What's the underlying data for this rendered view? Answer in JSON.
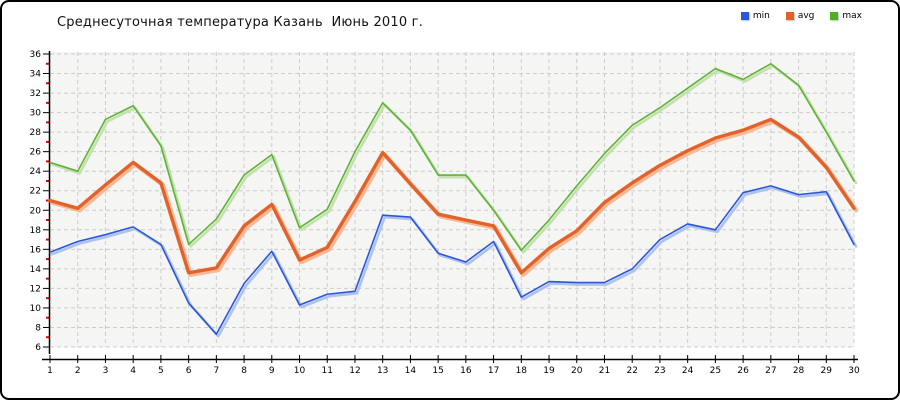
{
  "title": "Среднесуточная температура Казань  Июнь 2010 г.",
  "legend": {
    "position": "top-right",
    "items": [
      {
        "label": "min",
        "color": "#2C56D9"
      },
      {
        "label": "avg",
        "color": "#E2622A"
      },
      {
        "label": "max",
        "color": "#4FB021"
      }
    ]
  },
  "chart_data": {
    "type": "line",
    "title": "Среднесуточная температура Казань  Июнь 2010 г.",
    "xlabel": "",
    "ylabel": "",
    "x": [
      1,
      2,
      3,
      4,
      5,
      6,
      7,
      8,
      9,
      10,
      11,
      12,
      13,
      14,
      15,
      16,
      17,
      18,
      19,
      20,
      21,
      22,
      23,
      24,
      25,
      26,
      27,
      28,
      29,
      30
    ],
    "xlim": [
      1,
      30
    ],
    "ylim": [
      6,
      36
    ],
    "ystep": 2,
    "grid": true,
    "legend_position": "top-right",
    "series": [
      {
        "name": "min",
        "color": "#2C56D9",
        "halo": "#AEC2EE",
        "width": 1.6,
        "values": [
          15.7,
          16.8,
          17.5,
          18.3,
          16.5,
          10.5,
          7.3,
          12.5,
          15.8,
          10.3,
          11.4,
          11.7,
          19.5,
          19.3,
          15.6,
          14.7,
          16.8,
          11.1,
          12.7,
          12.6,
          12.6,
          14.0,
          17.0,
          18.6,
          18.0,
          21.8,
          22.5,
          21.6,
          21.9,
          16.5
        ]
      },
      {
        "name": "avg",
        "color": "#E2622A",
        "halo": "#F4BA97",
        "width": 3.4,
        "values": [
          21.0,
          20.2,
          22.6,
          24.9,
          22.8,
          13.6,
          14.1,
          18.4,
          20.6,
          14.9,
          16.2,
          20.9,
          25.9,
          22.7,
          19.6,
          19.0,
          18.4,
          13.6,
          16.1,
          17.9,
          20.8,
          22.8,
          24.6,
          26.1,
          27.4,
          28.2,
          29.3,
          27.5,
          24.4,
          20.2
        ]
      },
      {
        "name": "max",
        "color": "#5FB235",
        "halo": "#C4E0AC",
        "width": 1.6,
        "values": [
          24.9,
          24.0,
          29.3,
          30.7,
          26.6,
          16.5,
          19.1,
          23.6,
          25.7,
          18.2,
          20.1,
          26.0,
          31.0,
          28.2,
          23.6,
          23.6,
          20.0,
          15.9,
          19.0,
          22.5,
          25.8,
          28.7,
          30.5,
          32.5,
          34.5,
          33.4,
          35.0,
          32.8,
          28.0,
          23.0
        ]
      }
    ],
    "axis": {
      "line_color": "#000000",
      "tick_label_color": "#000000",
      "minor_tick_color": "#DD0000",
      "grid_color": "#CCCCCC",
      "plot_bg": "#F5F5F4"
    }
  }
}
